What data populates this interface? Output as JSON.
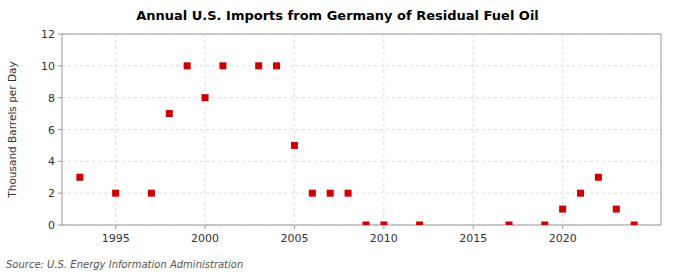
{
  "chart_data": {
    "type": "scatter",
    "title": "Annual U.S. Imports from Germany of Residual Fuel Oil",
    "ylabel": "Thousand Barrels per Day",
    "source": "Source: U.S. Energy Information Administration",
    "color": "#cc0000",
    "marker": "square",
    "grid": true,
    "xlim": [
      1992,
      2025.5
    ],
    "ylim": [
      0,
      12
    ],
    "xticks": [
      1995,
      2000,
      2005,
      2010,
      2015,
      2020
    ],
    "yticks": [
      0,
      2,
      4,
      6,
      8,
      10,
      12
    ],
    "x": [
      1993,
      1995,
      1997,
      1998,
      1999,
      2000,
      2001,
      2003,
      2004,
      2005,
      2006,
      2007,
      2008,
      2009,
      2010,
      2012,
      2017,
      2019,
      2020,
      2021,
      2022,
      2023,
      2024
    ],
    "values": [
      3,
      2,
      2,
      7,
      10,
      8,
      10,
      10,
      10,
      5,
      2,
      2,
      2,
      0,
      0,
      0,
      0,
      0,
      1,
      2,
      3,
      1,
      0
    ]
  }
}
